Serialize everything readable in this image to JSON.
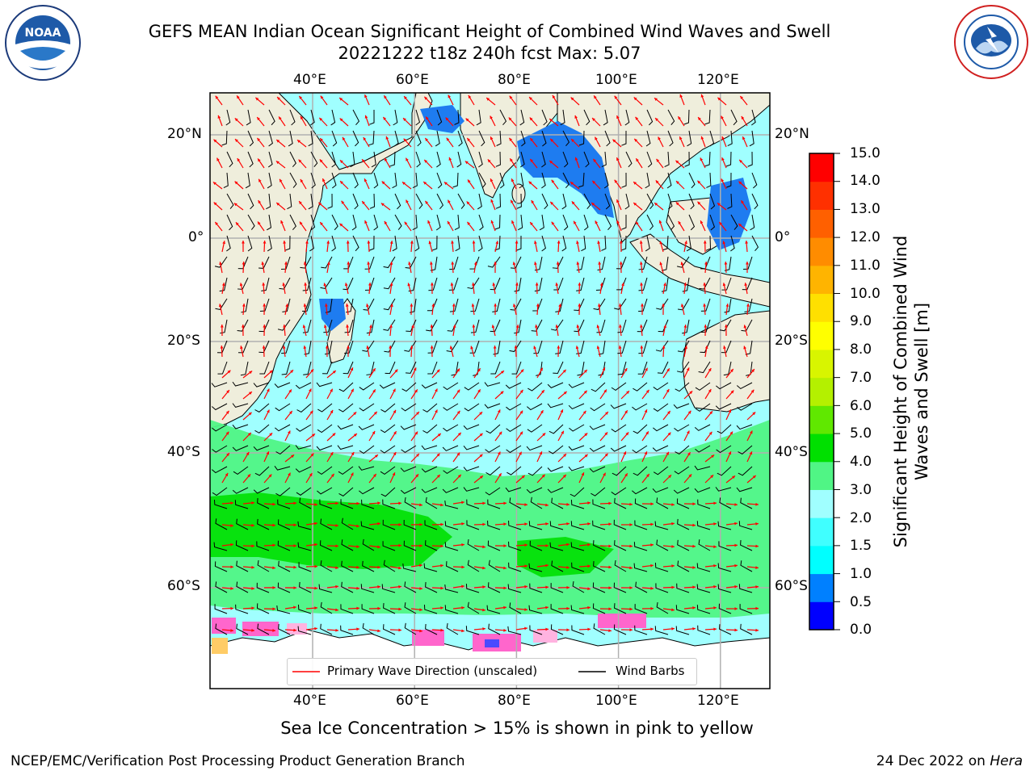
{
  "header": {
    "title_line1": "GEFS MEAN Indian Ocean Significant Height of Combined Wind Waves and Swell",
    "title_line2": "20221222 t18z 240h fcst   Max: 5.07"
  },
  "logos": {
    "left": "NOAA",
    "right": "NATIONAL WEATHER SERVICE"
  },
  "axes": {
    "lon_labels": [
      "40°E",
      "60°E",
      "80°E",
      "100°E",
      "120°E"
    ],
    "lat_labels": [
      "20°N",
      "0°",
      "20°S",
      "40°S",
      "60°S"
    ],
    "lon_values": [
      40,
      60,
      80,
      100,
      120
    ],
    "lat_values": [
      20,
      0,
      -20,
      -40,
      -60
    ],
    "lon_range": [
      20,
      130
    ],
    "lat_range": [
      -75,
      28
    ]
  },
  "colorbar": {
    "label": "Significant Height of Combined Wind Waves and Swell [m]",
    "ticks": [
      "0.0",
      "0.5",
      "1.0",
      "1.5",
      "2.0",
      "3.0",
      "4.0",
      "5.0",
      "6.0",
      "7.0",
      "8.0",
      "9.0",
      "10.0",
      "11.0",
      "12.0",
      "13.0",
      "14.0",
      "15.0"
    ],
    "colors": [
      "#0000ff",
      "#0080ff",
      "#00ffff",
      "#40ffff",
      "#a0ffff",
      "#50f585",
      "#00e000",
      "#60e800",
      "#b4f000",
      "#d8f500",
      "#ffff00",
      "#ffe000",
      "#ffb400",
      "#ff8c00",
      "#ff6000",
      "#ff3000",
      "#ff0000"
    ]
  },
  "legend": {
    "primary_wave_direction": "Primary Wave Direction (unscaled)",
    "wind_barbs": "Wind Barbs",
    "wave_color": "#ff0000",
    "barb_color": "#000000"
  },
  "footer": {
    "caption": "Sea Ice Concentration > 15% is shown in pink to yellow",
    "producer": "NCEP/EMC/Verification Post Processing Product Generation Branch",
    "date_text": "24 Dec 2022 on",
    "machine": "Hera"
  }
}
